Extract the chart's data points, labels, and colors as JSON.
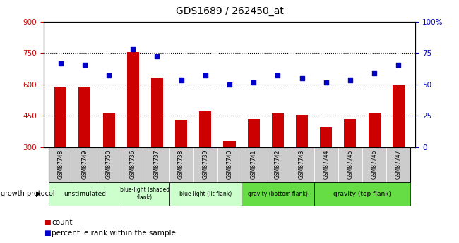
{
  "title": "GDS1689 / 262450_at",
  "samples": [
    "GSM87748",
    "GSM87749",
    "GSM87750",
    "GSM87736",
    "GSM87737",
    "GSM87738",
    "GSM87739",
    "GSM87740",
    "GSM87741",
    "GSM87742",
    "GSM87743",
    "GSM87744",
    "GSM87745",
    "GSM87746",
    "GSM87747"
  ],
  "bar_values": [
    590,
    585,
    460,
    755,
    630,
    430,
    470,
    330,
    435,
    460,
    455,
    395,
    435,
    465,
    595
  ],
  "scatter_values": [
    700,
    695,
    645,
    770,
    735,
    620,
    645,
    600,
    610,
    645,
    630,
    610,
    620,
    655,
    695
  ],
  "bar_color": "#cc0000",
  "scatter_color": "#0000cc",
  "ylim_left": [
    300,
    900
  ],
  "ylim_right": [
    0,
    100
  ],
  "yticks_left": [
    300,
    450,
    600,
    750,
    900
  ],
  "yticks_right": [
    0,
    25,
    50,
    75,
    100
  ],
  "ytick_labels_right": [
    "0",
    "25",
    "50",
    "75",
    "100%"
  ],
  "group_configs": [
    {
      "start": 0,
      "end": 3,
      "label": "unstimulated",
      "color": "#ccffcc"
    },
    {
      "start": 3,
      "end": 5,
      "label": "blue-light (shaded\nflank)",
      "color": "#ccffcc"
    },
    {
      "start": 5,
      "end": 8,
      "label": "blue-light (lit flank)",
      "color": "#ccffcc"
    },
    {
      "start": 8,
      "end": 11,
      "label": "gravity (bottom flank)",
      "color": "#66dd44"
    },
    {
      "start": 11,
      "end": 15,
      "label": "gravity (top flank)",
      "color": "#66dd44"
    }
  ],
  "xtick_bg": "#cccccc",
  "grid_dotted_at": [
    450,
    600,
    750
  ],
  "growth_protocol_label": "growth protocol",
  "legend_items": [
    {
      "label": "count",
      "color": "#cc0000"
    },
    {
      "label": "percentile rank within the sample",
      "color": "#0000cc"
    }
  ]
}
